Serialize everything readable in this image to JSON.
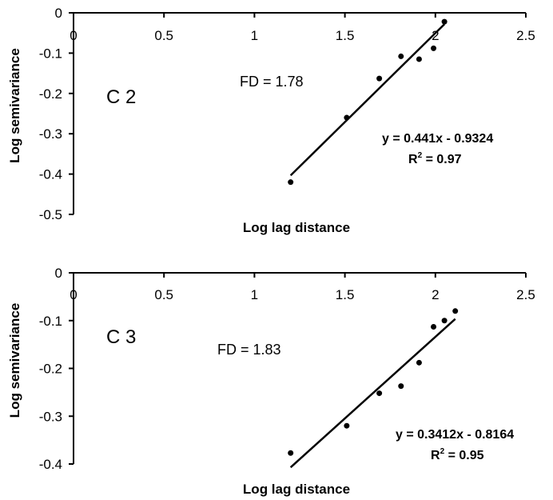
{
  "chart_data": [
    {
      "type": "scatter",
      "panel_label": "C 2",
      "xlabel": "Log lag distance",
      "ylabel": "Log semivariance",
      "xlim": [
        0,
        2.5
      ],
      "ylim": [
        -0.5,
        0
      ],
      "x_ticks": [
        "0",
        "0.5",
        "1",
        "1.5",
        "2",
        "2.5"
      ],
      "y_ticks": [
        "0",
        "-0.1",
        "-0.2",
        "-0.3",
        "-0.4",
        "-0.5"
      ],
      "x_tick_values": [
        0,
        0.5,
        1,
        1.5,
        2,
        2.5
      ],
      "y_tick_values": [
        0,
        -0.1,
        -0.2,
        -0.3,
        -0.4,
        -0.5
      ],
      "points": [
        {
          "x": 1.2,
          "y": -0.42
        },
        {
          "x": 1.51,
          "y": -0.26
        },
        {
          "x": 1.69,
          "y": -0.163
        },
        {
          "x": 1.81,
          "y": -0.108
        },
        {
          "x": 1.91,
          "y": -0.115
        },
        {
          "x": 1.99,
          "y": -0.088
        },
        {
          "x": 2.05,
          "y": -0.022
        }
      ],
      "trendline": {
        "slope": 0.441,
        "intercept": -0.9324,
        "x_range": [
          1.2,
          2.05
        ]
      },
      "fd_text": "FD = 1.78",
      "equation_text": "y = 0.441x - 0.9324",
      "r2_prefix": "R",
      "r2_sup": "2",
      "r2_value_text": " = 0.97"
    },
    {
      "type": "scatter",
      "panel_label": "C 3",
      "xlabel": "Log lag distance",
      "ylabel": "Log semivariance",
      "xlim": [
        0,
        2.5
      ],
      "ylim": [
        -0.4,
        0
      ],
      "x_ticks": [
        "0",
        "0.5",
        "1",
        "1.5",
        "2",
        "2.5"
      ],
      "y_ticks": [
        "0",
        "-0.1",
        "-0.2",
        "-0.3",
        "-0.4"
      ],
      "x_tick_values": [
        0,
        0.5,
        1,
        1.5,
        2,
        2.5
      ],
      "y_tick_values": [
        0,
        -0.1,
        -0.2,
        -0.3,
        -0.4
      ],
      "points": [
        {
          "x": 1.2,
          "y": -0.377
        },
        {
          "x": 1.51,
          "y": -0.32
        },
        {
          "x": 1.69,
          "y": -0.252
        },
        {
          "x": 1.81,
          "y": -0.237
        },
        {
          "x": 1.91,
          "y": -0.188
        },
        {
          "x": 1.99,
          "y": -0.113
        },
        {
          "x": 2.05,
          "y": -0.1
        },
        {
          "x": 2.11,
          "y": -0.08
        }
      ],
      "trendline": {
        "slope": 0.3412,
        "intercept": -0.8164,
        "x_range": [
          1.2,
          2.11
        ]
      },
      "fd_text": "FD = 1.83",
      "equation_text": "y = 0.3412x - 0.8164",
      "r2_prefix": "R",
      "r2_sup": "2",
      "r2_value_text": " = 0.95"
    }
  ]
}
